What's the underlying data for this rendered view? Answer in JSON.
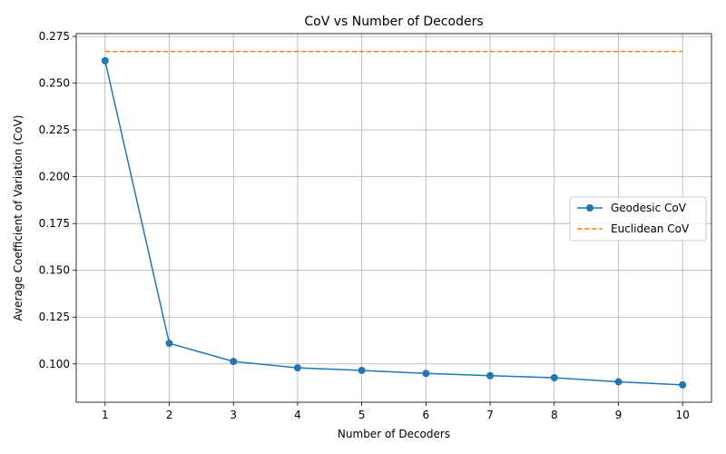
{
  "chart_data": {
    "type": "line",
    "title": "CoV vs Number of Decoders",
    "xlabel": "Number of Decoders",
    "ylabel": "Average Coefficient of Variation (CoV)",
    "x": [
      1,
      2,
      3,
      4,
      5,
      6,
      7,
      8,
      9,
      10
    ],
    "xticks": [
      1,
      2,
      3,
      4,
      5,
      6,
      7,
      8,
      9,
      10
    ],
    "xlim": [
      0.55,
      10.45
    ],
    "ylim": [
      0.0795,
      0.2765
    ],
    "yticks": [
      0.1,
      0.125,
      0.15,
      0.175,
      0.2,
      0.225,
      0.25,
      0.275
    ],
    "ytick_labels": [
      "0.100",
      "0.125",
      "0.150",
      "0.175",
      "0.200",
      "0.225",
      "0.250",
      "0.275"
    ],
    "grid": true,
    "legend_position": "center-right",
    "series": [
      {
        "name": "Geodesic CoV",
        "style": "solid-marker",
        "color": "#1f77b4",
        "values": [
          0.262,
          0.111,
          0.1013,
          0.0979,
          0.0965,
          0.0949,
          0.0937,
          0.0926,
          0.0904,
          0.0888
        ]
      },
      {
        "name": "Euclidean CoV",
        "style": "dashed",
        "color": "#ff7f0e",
        "values": [
          0.267,
          0.267,
          0.267,
          0.267,
          0.267,
          0.267,
          0.267,
          0.267,
          0.267,
          0.267
        ]
      }
    ]
  }
}
